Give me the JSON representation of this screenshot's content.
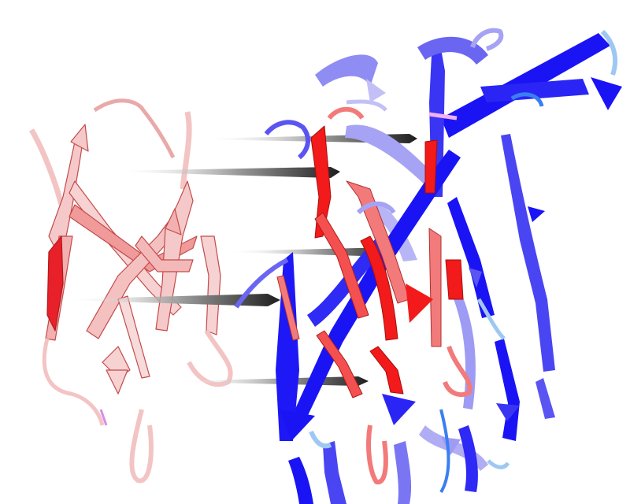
{
  "figure": {
    "kind": "protein ribbon structure rendering",
    "background": "#ffffff",
    "left_structure": {
      "description_colors": {
        "light": "#f6d2d2",
        "mid": "#f08e8e",
        "strong": "#e8202a",
        "outline": "#c44a4a"
      }
    },
    "right_structure": {
      "description_colors": {
        "blue": "#1a14f5",
        "blue_mid": "#5a55f2",
        "blue_light": "#a6a3f4",
        "sky": "#9ec8f2",
        "red": "#f21a1a",
        "red_mid": "#f37a7a"
      }
    },
    "arrows": {
      "count": 5,
      "color_dark": "#1e1e1e",
      "color_fade": "#ffffff"
    }
  }
}
